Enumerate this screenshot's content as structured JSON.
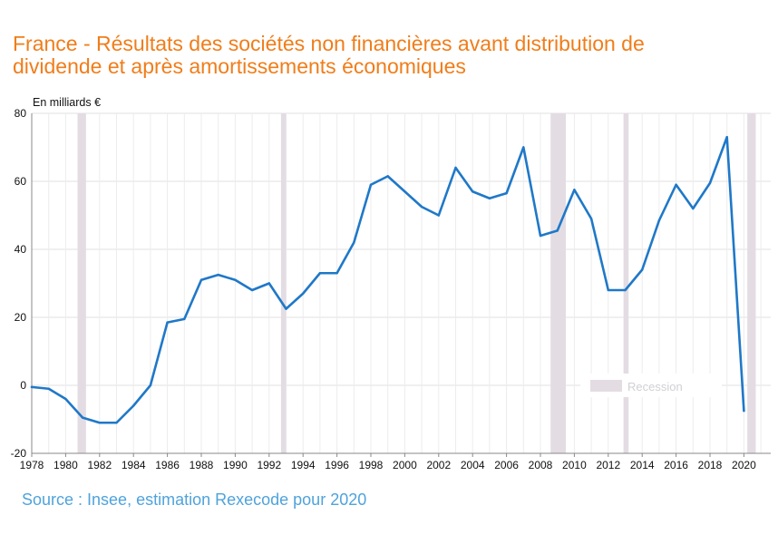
{
  "chart_data": {
    "type": "line",
    "title_lines": [
      "France - Résultats des sociétés non financières avant distribution de",
      "dividende et après amortissements économiques"
    ],
    "ylabel": "En milliards €",
    "ylim": [
      -20,
      80
    ],
    "yticks": [
      -20,
      0,
      20,
      40,
      60,
      80
    ],
    "xlim": [
      1978,
      2021.5
    ],
    "xticks": [
      1978,
      1980,
      1982,
      1984,
      1986,
      1988,
      1990,
      1992,
      1994,
      1996,
      1998,
      2000,
      2002,
      2004,
      2006,
      2008,
      2010,
      2012,
      2014,
      2016,
      2018,
      2020
    ],
    "grid": true,
    "series": [
      {
        "name": "Résultats des sociétés non financières",
        "color": "#1f78c8",
        "x": [
          1978,
          1979,
          1980,
          1981,
          1982,
          1983,
          1984,
          1985,
          1986,
          1987,
          1988,
          1989,
          1990,
          1991,
          1992,
          1993,
          1994,
          1995,
          1996,
          1997,
          1998,
          1999,
          2000,
          2001,
          2002,
          2003,
          2004,
          2005,
          2006,
          2007,
          2008,
          2009,
          2010,
          2011,
          2012,
          2013,
          2014,
          2015,
          2016,
          2017,
          2018,
          2019,
          2020
        ],
        "values": [
          -0.5,
          -1,
          -4,
          -9.5,
          -11,
          -11,
          -6,
          0,
          18.5,
          19.5,
          31,
          32.5,
          31,
          28,
          30,
          22.5,
          27,
          33,
          33,
          42,
          59,
          61.5,
          57,
          52.5,
          50,
          64,
          57,
          55,
          56.5,
          70,
          44,
          45.5,
          57.5,
          49,
          28,
          28,
          34,
          48.5,
          59,
          52,
          59.5,
          73,
          -7.5
        ]
      }
    ],
    "recessions": [
      {
        "start": 1980.7,
        "end": 1981.2
      },
      {
        "start": 1992.7,
        "end": 1993.0
      },
      {
        "start": 2008.6,
        "end": 2009.5
      },
      {
        "start": 2012.9,
        "end": 2013.2
      },
      {
        "start": 2020.2,
        "end": 2020.7
      }
    ],
    "recession_color": "#e3dde3",
    "legend": {
      "label": "Recession",
      "position": "bottom-right"
    },
    "source": "Source : Insee, estimation Rexecode pour 2020"
  }
}
